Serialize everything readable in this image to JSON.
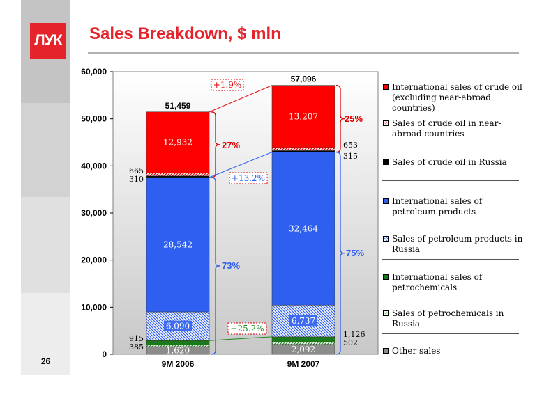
{
  "slide": {
    "title": "Sales Breakdown, $ mln",
    "page_number": "26",
    "logo_text": "ЛУК"
  },
  "colors": {
    "brand_red": "#e5232b",
    "crude_intl": "#ff0000",
    "crude_near_abroad": "#ff6666",
    "crude_russia": "#000000",
    "petroleum_intl": "#2e5ff0",
    "petroleum_russia": "#4f7ff0",
    "petrochem_intl": "#1a7a1a",
    "petrochem_russia": "#7cbf7c",
    "other": "#8c8c8c"
  },
  "chart_data": {
    "type": "bar",
    "stacked": true,
    "title": "Sales Breakdown, $ mln",
    "categories": [
      "9M 2006",
      "9M 2007"
    ],
    "ylim": [
      0,
      60000
    ],
    "yticks": [
      "0",
      "10,000",
      "20,000",
      "30,000",
      "40,000",
      "50,000",
      "60,000"
    ],
    "totals": [
      "51,459",
      "57,096"
    ],
    "series": [
      {
        "name": "Other sales",
        "values": [
          1620,
          2092
        ],
        "labels": [
          "1,620",
          "2,092"
        ]
      },
      {
        "name": "Sales of petrochemicals in Russia",
        "values": [
          385,
          502
        ],
        "labels": [
          "385",
          "502"
        ]
      },
      {
        "name": "International sales of petrochemicals",
        "values": [
          915,
          1126
        ],
        "labels": [
          "915",
          "1,126"
        ]
      },
      {
        "name": "Sales of petroleum products in Russia",
        "values": [
          6090,
          6737
        ],
        "labels": [
          "6,090",
          "6,737"
        ]
      },
      {
        "name": "International sales of petroleum products",
        "values": [
          28542,
          32464
        ],
        "labels": [
          "28,542",
          "32,464"
        ]
      },
      {
        "name": "Sales of crude oil in Russia",
        "values": [
          310,
          315
        ],
        "labels": [
          "310",
          "315"
        ]
      },
      {
        "name": "Sales of crude oil in near-abroad countries",
        "values": [
          665,
          653
        ],
        "labels": [
          "665",
          "653"
        ]
      },
      {
        "name": "International sales of crude oil (excluding near-abroad countries)",
        "values": [
          12932,
          13207
        ],
        "labels": [
          "12,932",
          "13,207"
        ]
      }
    ],
    "share_labels": {
      "crude": [
        "27%",
        "25%"
      ],
      "products": [
        "73%",
        "75%"
      ]
    },
    "growth_labels": {
      "crude": "+1.9%",
      "products": "+13.2%",
      "petrochemicals": "+25.2%"
    },
    "grid": false,
    "legend_position": "right"
  },
  "legend": {
    "groups": [
      [
        {
          "label": "International sales of crude oil (excluding near-abroad countries)",
          "color": "#ff0000",
          "pattern": "solid"
        },
        {
          "label": "Sales of crude oil in near-abroad countries",
          "color": "#ff6666",
          "pattern": "hatch"
        },
        {
          "label": "Sales of crude oil in Russia",
          "color": "#000000",
          "pattern": "solid"
        }
      ],
      [
        {
          "label": "International sales of petroleum products",
          "color": "#2e5ff0",
          "pattern": "solid"
        },
        {
          "label": "Sales of petroleum products in Russia",
          "color": "#4f7ff0",
          "pattern": "hatch"
        }
      ],
      [
        {
          "label": "International sales of petrochemicals",
          "color": "#1a7a1a",
          "pattern": "solid"
        },
        {
          "label": "Sales of petrochemicals in Russia",
          "color": "#7cbf7c",
          "pattern": "hatch"
        }
      ],
      [
        {
          "label": "Other sales",
          "color": "#8c8c8c",
          "pattern": "solid"
        }
      ]
    ]
  }
}
